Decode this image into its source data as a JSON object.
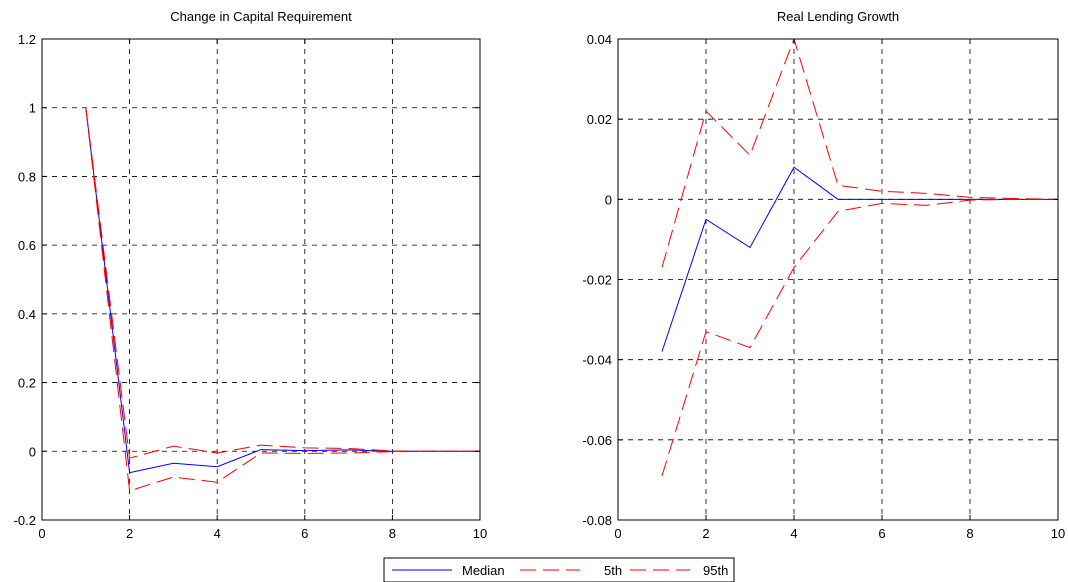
{
  "chart_data": [
    {
      "type": "line",
      "title": "Change in Capital Requirement",
      "xlabel": "",
      "ylabel": "",
      "xlim": [
        0,
        10
      ],
      "ylim": [
        -0.2,
        1.2
      ],
      "xticks": [
        0,
        2,
        4,
        6,
        8,
        10
      ],
      "yticks": [
        -0.2,
        0,
        0.2,
        0.4,
        0.6,
        0.8,
        1,
        1.2
      ],
      "xtick_labels": [
        "0",
        "2",
        "4",
        "6",
        "8",
        "10"
      ],
      "ytick_labels": [
        "-0.2",
        "0",
        "0.2",
        "0.4",
        "0.6",
        "0.8",
        "1",
        "1.2"
      ],
      "grid": true,
      "x": [
        1,
        2,
        3,
        4,
        5,
        6,
        7,
        8,
        9,
        10
      ],
      "series": [
        {
          "name": "Median",
          "color": "#0000ff",
          "style": "solid",
          "values": [
            1.0,
            -0.062,
            -0.035,
            -0.045,
            0.005,
            0.002,
            0.004,
            0.0,
            0.0,
            0.0
          ]
        },
        {
          "name": "5th",
          "color": "#ff0000",
          "style": "dashed",
          "values": [
            1.0,
            -0.115,
            -0.075,
            -0.09,
            -0.005,
            -0.006,
            -0.005,
            -0.001,
            0.0,
            0.0
          ]
        },
        {
          "name": "95th",
          "color": "#ff0000",
          "style": "dashed",
          "values": [
            1.0,
            -0.02,
            0.015,
            -0.005,
            0.018,
            0.01,
            0.008,
            0.001,
            0.0,
            0.0
          ]
        }
      ]
    },
    {
      "type": "line",
      "title": "Real Lending Growth",
      "xlabel": "",
      "ylabel": "",
      "xlim": [
        0,
        10
      ],
      "ylim": [
        -0.08,
        0.04
      ],
      "xticks": [
        0,
        2,
        4,
        6,
        8,
        10
      ],
      "yticks": [
        -0.08,
        -0.06,
        -0.04,
        -0.02,
        0,
        0.02,
        0.04
      ],
      "xtick_labels": [
        "0",
        "2",
        "4",
        "6",
        "8",
        "10"
      ],
      "ytick_labels": [
        "-0.08",
        "-0.06",
        "-0.04",
        "-0.02",
        "0",
        "0.02",
        "0.04"
      ],
      "grid": true,
      "x": [
        1,
        2,
        3,
        4,
        5,
        6,
        7,
        8,
        9,
        10
      ],
      "series": [
        {
          "name": "Median",
          "color": "#0000ff",
          "style": "solid",
          "values": [
            -0.038,
            -0.005,
            -0.012,
            0.008,
            0.0,
            0.0,
            0.0,
            0.0,
            0.0,
            0.0
          ]
        },
        {
          "name": "5th",
          "color": "#ff0000",
          "style": "dashed",
          "values": [
            -0.069,
            -0.033,
            -0.037,
            -0.017,
            -0.003,
            -0.001,
            -0.0015,
            -0.0002,
            0.0,
            0.0
          ]
        },
        {
          "name": "95th",
          "color": "#ff0000",
          "style": "dashed",
          "values": [
            -0.017,
            0.022,
            0.011,
            0.04,
            0.0035,
            0.002,
            0.0015,
            0.0005,
            0.0002,
            0.0
          ]
        }
      ]
    }
  ],
  "legend": {
    "position": "bottom-center",
    "entries": [
      {
        "label": "Median",
        "color": "#0000ff",
        "style": "solid"
      },
      {
        "label": "5th",
        "color": "#ff0000",
        "style": "dashed"
      },
      {
        "label": "95th",
        "color": "#ff0000",
        "style": "dashed"
      }
    ]
  }
}
